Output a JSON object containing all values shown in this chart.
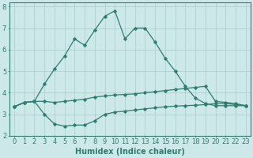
{
  "xlabel": "Humidex (Indice chaleur)",
  "background_color": "#cce8e8",
  "grid_color": "#aacccc",
  "line_color": "#2e7d72",
  "xlim": [
    -0.5,
    23.5
  ],
  "ylim": [
    2,
    8.2
  ],
  "xticks": [
    0,
    1,
    2,
    3,
    4,
    5,
    6,
    7,
    8,
    9,
    10,
    11,
    12,
    13,
    14,
    15,
    16,
    17,
    18,
    19,
    20,
    21,
    22,
    23
  ],
  "yticks": [
    2,
    3,
    4,
    5,
    6,
    7,
    8
  ],
  "line1_x": [
    0,
    1,
    2,
    3,
    4,
    5,
    6,
    7,
    8,
    9,
    10,
    11,
    12,
    13,
    14,
    15,
    16,
    17,
    18,
    19,
    20,
    21,
    22,
    23
  ],
  "line1_y": [
    3.35,
    3.55,
    3.6,
    4.4,
    5.1,
    5.7,
    6.5,
    6.2,
    6.9,
    7.55,
    7.8,
    6.5,
    7.0,
    7.0,
    6.35,
    5.6,
    5.0,
    4.3,
    3.75,
    3.5,
    3.4,
    3.4,
    3.4,
    3.4
  ],
  "line2_x": [
    0,
    1,
    2,
    3,
    4,
    5,
    6,
    7,
    8,
    9,
    10,
    11,
    12,
    13,
    14,
    15,
    16,
    17,
    18,
    19,
    20,
    21,
    22,
    23
  ],
  "line2_y": [
    3.35,
    3.55,
    3.6,
    3.6,
    3.55,
    3.6,
    3.65,
    3.7,
    3.8,
    3.85,
    3.9,
    3.92,
    3.95,
    4.0,
    4.05,
    4.1,
    4.15,
    4.2,
    4.25,
    4.3,
    3.6,
    3.55,
    3.5,
    3.4
  ],
  "line3_x": [
    0,
    1,
    2,
    3,
    4,
    5,
    6,
    7,
    8,
    9,
    10,
    11,
    12,
    13,
    14,
    15,
    16,
    17,
    18,
    19,
    20,
    21,
    22,
    23
  ],
  "line3_y": [
    3.35,
    3.55,
    3.6,
    3.0,
    2.55,
    2.45,
    2.5,
    2.5,
    2.7,
    3.0,
    3.1,
    3.15,
    3.2,
    3.25,
    3.3,
    3.35,
    3.38,
    3.4,
    3.42,
    3.45,
    3.5,
    3.5,
    3.45,
    3.4
  ],
  "marker_size": 1.8,
  "line_width": 0.9,
  "font_size_label": 7,
  "font_size_tick": 6
}
